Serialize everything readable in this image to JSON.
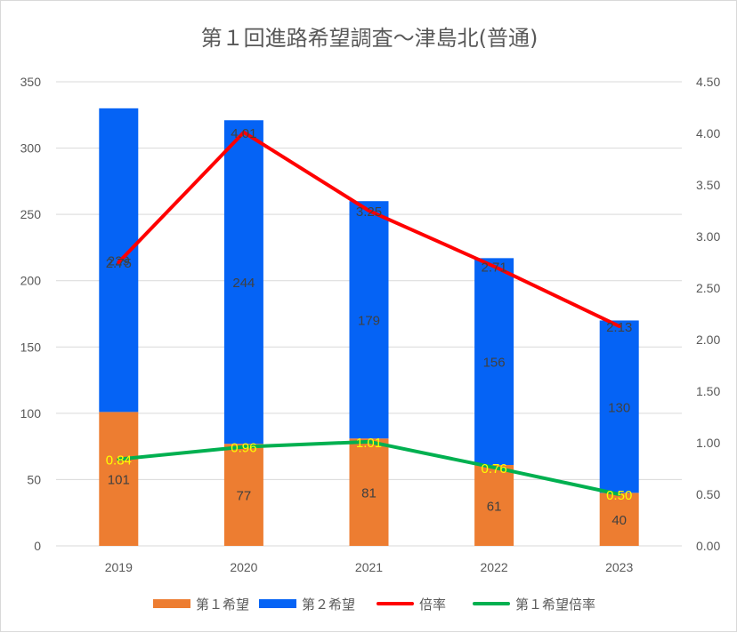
{
  "title": "第１回進路希望調査～津島北(普通)",
  "chart_data": {
    "type": "bar",
    "stacked": true,
    "categories": [
      "2019",
      "2020",
      "2021",
      "2022",
      "2023"
    ],
    "series": [
      {
        "name": "第１希望",
        "kind": "bar",
        "axis": "left",
        "color": "#ed7d31",
        "values": [
          101,
          77,
          81,
          61,
          40
        ]
      },
      {
        "name": "第２希望",
        "kind": "bar",
        "axis": "left",
        "color": "#0563f5",
        "values": [
          229,
          244,
          179,
          156,
          130
        ]
      },
      {
        "name": "倍率",
        "kind": "line",
        "axis": "right",
        "color": "#ff0000",
        "values": [
          2.75,
          4.01,
          3.25,
          2.71,
          2.13
        ]
      },
      {
        "name": "第１希望倍率",
        "kind": "line",
        "axis": "right",
        "color": "#00b050",
        "values": [
          0.84,
          0.96,
          1.01,
          0.76,
          0.5
        ]
      }
    ],
    "bar_labels": {
      "first": [
        "101",
        "77",
        "81",
        "61",
        "40"
      ],
      "second": [
        "229",
        "244",
        "179",
        "156",
        "130"
      ]
    },
    "line_labels": {
      "ratio": [
        "2.75",
        "4.01",
        "3.25",
        "2.71",
        "2.13"
      ],
      "first_ratio": [
        "0.84",
        "0.96",
        "1.01",
        "0.76",
        "0.50"
      ]
    },
    "ylim": [
      0,
      350
    ],
    "yticks": [
      "0",
      "50",
      "100",
      "150",
      "200",
      "250",
      "300",
      "350"
    ],
    "y2lim": [
      0,
      4.5
    ],
    "y2ticks": [
      "0.00",
      "0.50",
      "1.00",
      "1.50",
      "2.00",
      "2.50",
      "3.00",
      "3.50",
      "4.00",
      "4.50"
    ],
    "grid": true,
    "legend_position": "bottom"
  }
}
